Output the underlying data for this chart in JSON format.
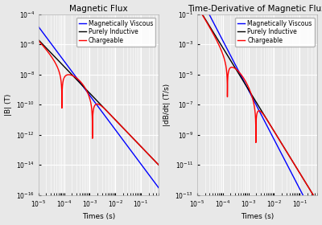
{
  "title1": "Magnetic Flux",
  "title2": "Time-Derivative of Magnetic Flux",
  "xlabel": "Times (s)",
  "ylabel1": "|B| (T)",
  "ylabel2": "|dB/dt| (T/s)",
  "legend_labels": [
    "Purely Inductive",
    "Chargeable",
    "Magnetically Viscous"
  ],
  "legend_colors": [
    "black",
    "red",
    "blue"
  ],
  "bg_color": "#e8e8e8",
  "title_fontsize": 7.5,
  "label_fontsize": 6.5,
  "tick_fontsize": 5.5,
  "legend_fontsize": 5.5,
  "linewidth": 1.0,
  "tau_ip": 0.00025,
  "tau_vis": 0.0001,
  "n_points": 2000
}
